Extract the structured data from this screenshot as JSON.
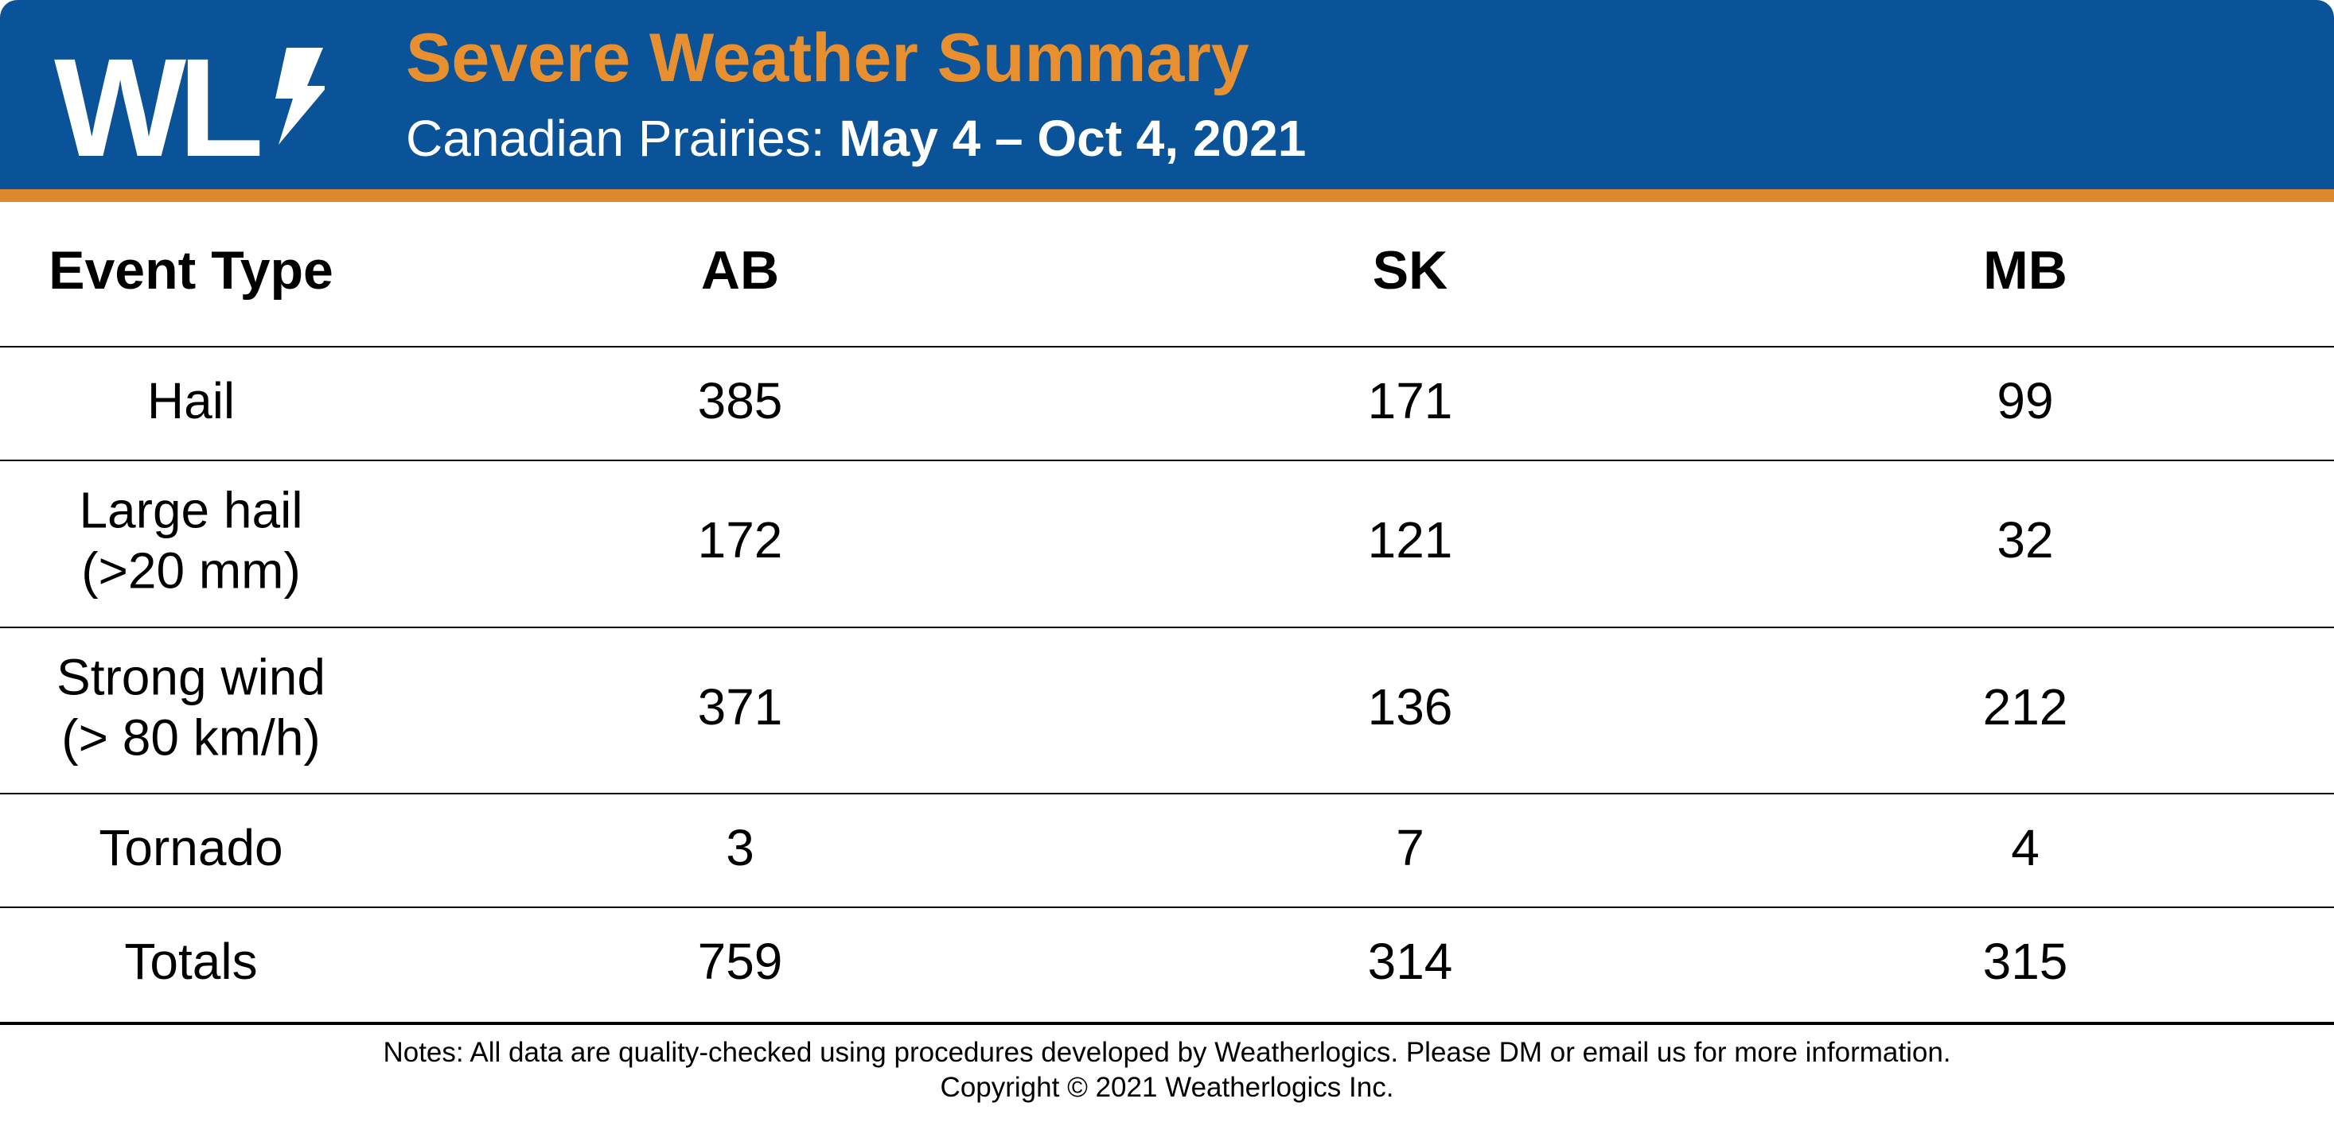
{
  "header": {
    "logo_text": "WL",
    "title": "Severe Weather Summary",
    "subtitle_prefix": "Canadian Prairies: ",
    "subtitle_dates": "May 4 – Oct 4, 2021"
  },
  "colors": {
    "header_bg": "#0b5398",
    "accent": "#e0882e",
    "title": "#e8902f"
  },
  "chart_data": {
    "type": "table",
    "columns": [
      "Event Type",
      "AB",
      "SK",
      "MB"
    ],
    "rows": [
      {
        "event": [
          "Hail"
        ],
        "AB": 385,
        "SK": 171,
        "MB": 99
      },
      {
        "event": [
          "Large hail",
          "(>20 mm)"
        ],
        "AB": 172,
        "SK": 121,
        "MB": 32
      },
      {
        "event": [
          "Strong wind",
          "(> 80 km/h)"
        ],
        "AB": 371,
        "SK": 136,
        "MB": 212
      },
      {
        "event": [
          "Tornado"
        ],
        "AB": 3,
        "SK": 7,
        "MB": 4
      },
      {
        "event": [
          "Totals"
        ],
        "AB": 759,
        "SK": 314,
        "MB": 315
      }
    ]
  },
  "footer": {
    "notes": "Notes: All data are quality-checked using procedures developed by Weatherlogics. Please DM or email us for more information.",
    "copyright": "Copyright © 2021 Weatherlogics Inc."
  }
}
